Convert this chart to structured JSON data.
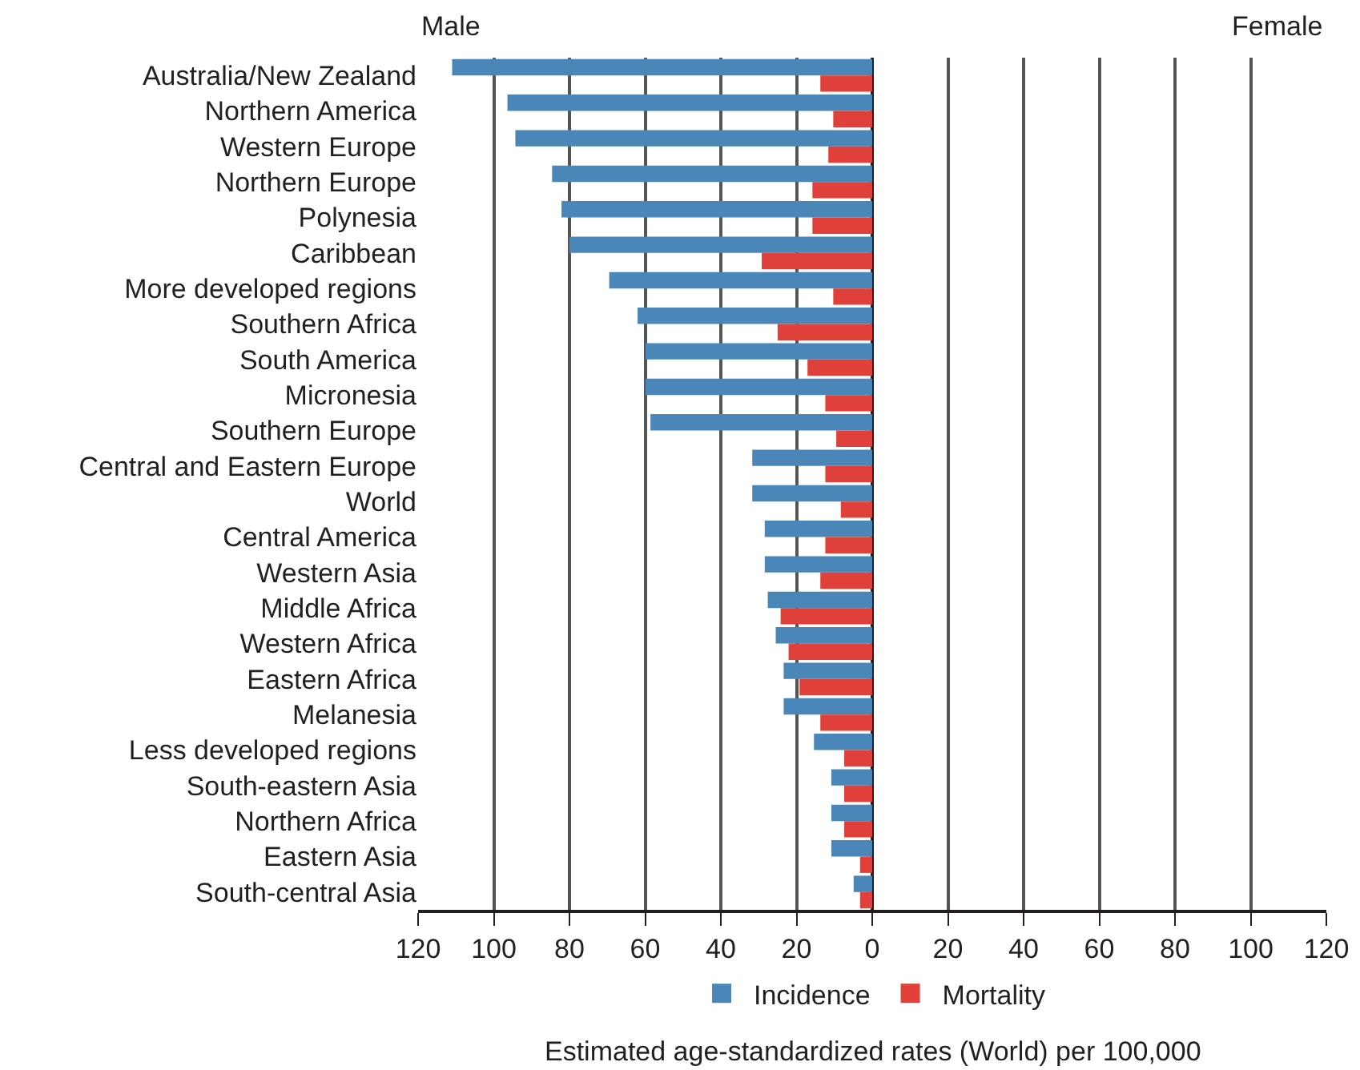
{
  "chart_data": {
    "type": "bar",
    "orientation": "horizontal",
    "xlabel": "Estimated age-standardized rates (World) per 100,000",
    "annotations": [
      "Male",
      "Female"
    ],
    "categories": [
      "Australia/New Zealand",
      "Northern America",
      "Western Europe",
      "Northern Europe",
      "Polynesia",
      "Caribbean",
      "More developed regions",
      "Southern Africa",
      "South America",
      "Micronesia",
      "Southern Europe",
      "Central and Eastern Europe",
      "World",
      "Central America",
      "Western Asia",
      "Middle Africa",
      "Western Africa",
      "Eastern Africa",
      "Melanesia",
      "Less developed regions",
      "South-eastern Asia",
      "Northern Africa",
      "Eastern Asia",
      "South-central Asia"
    ],
    "series": [
      {
        "name": "Incidence",
        "color": "#4a86b8",
        "values": [
          -111,
          -96.4,
          -94.3,
          -84.6,
          -82.1,
          -80,
          -69.5,
          -62,
          -59.9,
          -59.9,
          -58.6,
          -31.7,
          -31.7,
          -28.4,
          -28.4,
          -27.6,
          -25.5,
          -23.4,
          -23.4,
          -15.4,
          -10.8,
          -10.8,
          -10.8,
          -4.9
        ]
      },
      {
        "name": "Mortality",
        "color": "#e0403a",
        "values": [
          -13.7,
          -10.3,
          -11.6,
          -15.8,
          -15.8,
          -29.2,
          -10.3,
          -25,
          -17.1,
          -12.4,
          -9.5,
          -12.4,
          -8.3,
          -12.4,
          -13.7,
          -24.2,
          -22.1,
          -19.2,
          -13.7,
          -7.4,
          -7.4,
          -7.4,
          -3.2,
          -3.2
        ]
      }
    ],
    "xlim": [
      -120,
      120
    ],
    "xticks": [
      {
        "value": -120,
        "label": "120"
      },
      {
        "value": -100,
        "label": "100"
      },
      {
        "value": -80,
        "label": "80"
      },
      {
        "value": -60,
        "label": "60"
      },
      {
        "value": -40,
        "label": "40"
      },
      {
        "value": -20,
        "label": "20"
      },
      0,
      20,
      40,
      60,
      80,
      100,
      120
    ],
    "grid": "x",
    "legend": "bottom"
  }
}
